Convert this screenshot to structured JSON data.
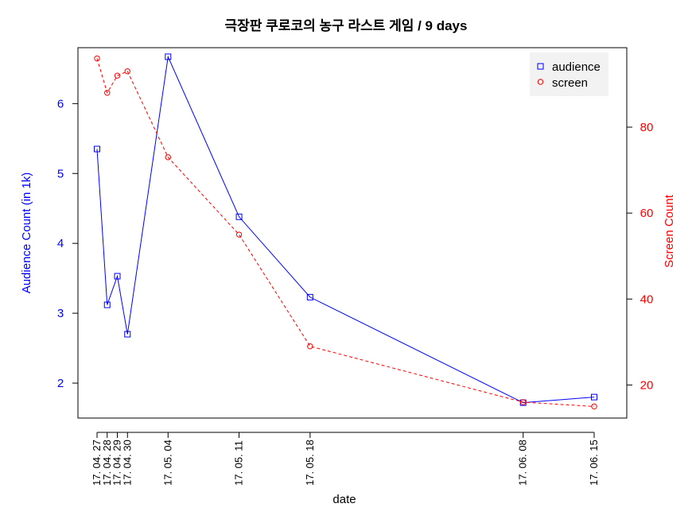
{
  "chart_data": {
    "type": "line",
    "title": "극장판 쿠로코의 농구 라스트 게임 / 9 days",
    "xlabel": "date",
    "ylabel_left": "Audience Count (in 1k)",
    "ylabel_right": "Screen Count",
    "x": [
      "17. 04. 27",
      "17. 04. 28",
      "17. 04. 29",
      "17. 04. 30",
      "17. 05. 04",
      "17. 05. 11",
      "17. 05. 18",
      "17. 06. 08",
      "17. 06. 15"
    ],
    "x_days": [
      0,
      1,
      2,
      3,
      7,
      14,
      21,
      42,
      49
    ],
    "series": [
      {
        "name": "audience",
        "axis": "left",
        "color": "#0000ff",
        "marker": "square",
        "line": "solid",
        "values": [
          5.35,
          3.12,
          3.53,
          2.7,
          6.67,
          4.38,
          3.23,
          1.72,
          1.8
        ]
      },
      {
        "name": "screen",
        "axis": "right",
        "color": "#ff0000",
        "marker": "circle",
        "line": "dashed",
        "values": [
          96,
          88,
          92,
          93,
          73,
          55,
          29,
          16,
          15
        ]
      }
    ],
    "ylim_left": [
      1.5,
      6.8
    ],
    "yticks_left": [
      2,
      3,
      4,
      5,
      6
    ],
    "ylim_right": [
      12.3,
      98.5
    ],
    "yticks_right": [
      20,
      40,
      60,
      80
    ],
    "legend_position": "top-right",
    "grid": false
  }
}
